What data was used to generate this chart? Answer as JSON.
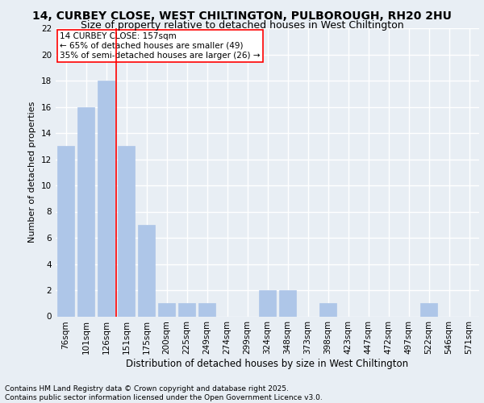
{
  "title1": "14, CURBEY CLOSE, WEST CHILTINGTON, PULBOROUGH, RH20 2HU",
  "title2": "Size of property relative to detached houses in West Chiltington",
  "xlabel": "Distribution of detached houses by size in West Chiltington",
  "ylabel": "Number of detached properties",
  "categories": [
    "76sqm",
    "101sqm",
    "126sqm",
    "151sqm",
    "175sqm",
    "200sqm",
    "225sqm",
    "249sqm",
    "274sqm",
    "299sqm",
    "324sqm",
    "348sqm",
    "373sqm",
    "398sqm",
    "423sqm",
    "447sqm",
    "472sqm",
    "497sqm",
    "522sqm",
    "546sqm",
    "571sqm"
  ],
  "values": [
    13,
    16,
    18,
    13,
    7,
    1,
    1,
    1,
    0,
    0,
    2,
    2,
    0,
    1,
    0,
    0,
    0,
    0,
    1,
    0,
    0
  ],
  "bar_color": "#aec6e8",
  "bar_edgecolor": "#aec6e8",
  "red_line_x": 2.5,
  "annotation_title": "14 CURBEY CLOSE: 157sqm",
  "annotation_line1": "← 65% of detached houses are smaller (49)",
  "annotation_line2": "35% of semi-detached houses are larger (26) →",
  "ylim": [
    0,
    22
  ],
  "yticks": [
    0,
    2,
    4,
    6,
    8,
    10,
    12,
    14,
    16,
    18,
    20,
    22
  ],
  "footer": "Contains HM Land Registry data © Crown copyright and database right 2025.\nContains public sector information licensed under the Open Government Licence v3.0.",
  "bg_color": "#e8eef4",
  "plot_bg_color": "#e8eef4",
  "grid_color": "#ffffff",
  "title1_fontsize": 10,
  "title2_fontsize": 9,
  "xlabel_fontsize": 8.5,
  "ylabel_fontsize": 8,
  "tick_fontsize": 7.5,
  "annotation_fontsize": 7.5,
  "footer_fontsize": 6.5
}
